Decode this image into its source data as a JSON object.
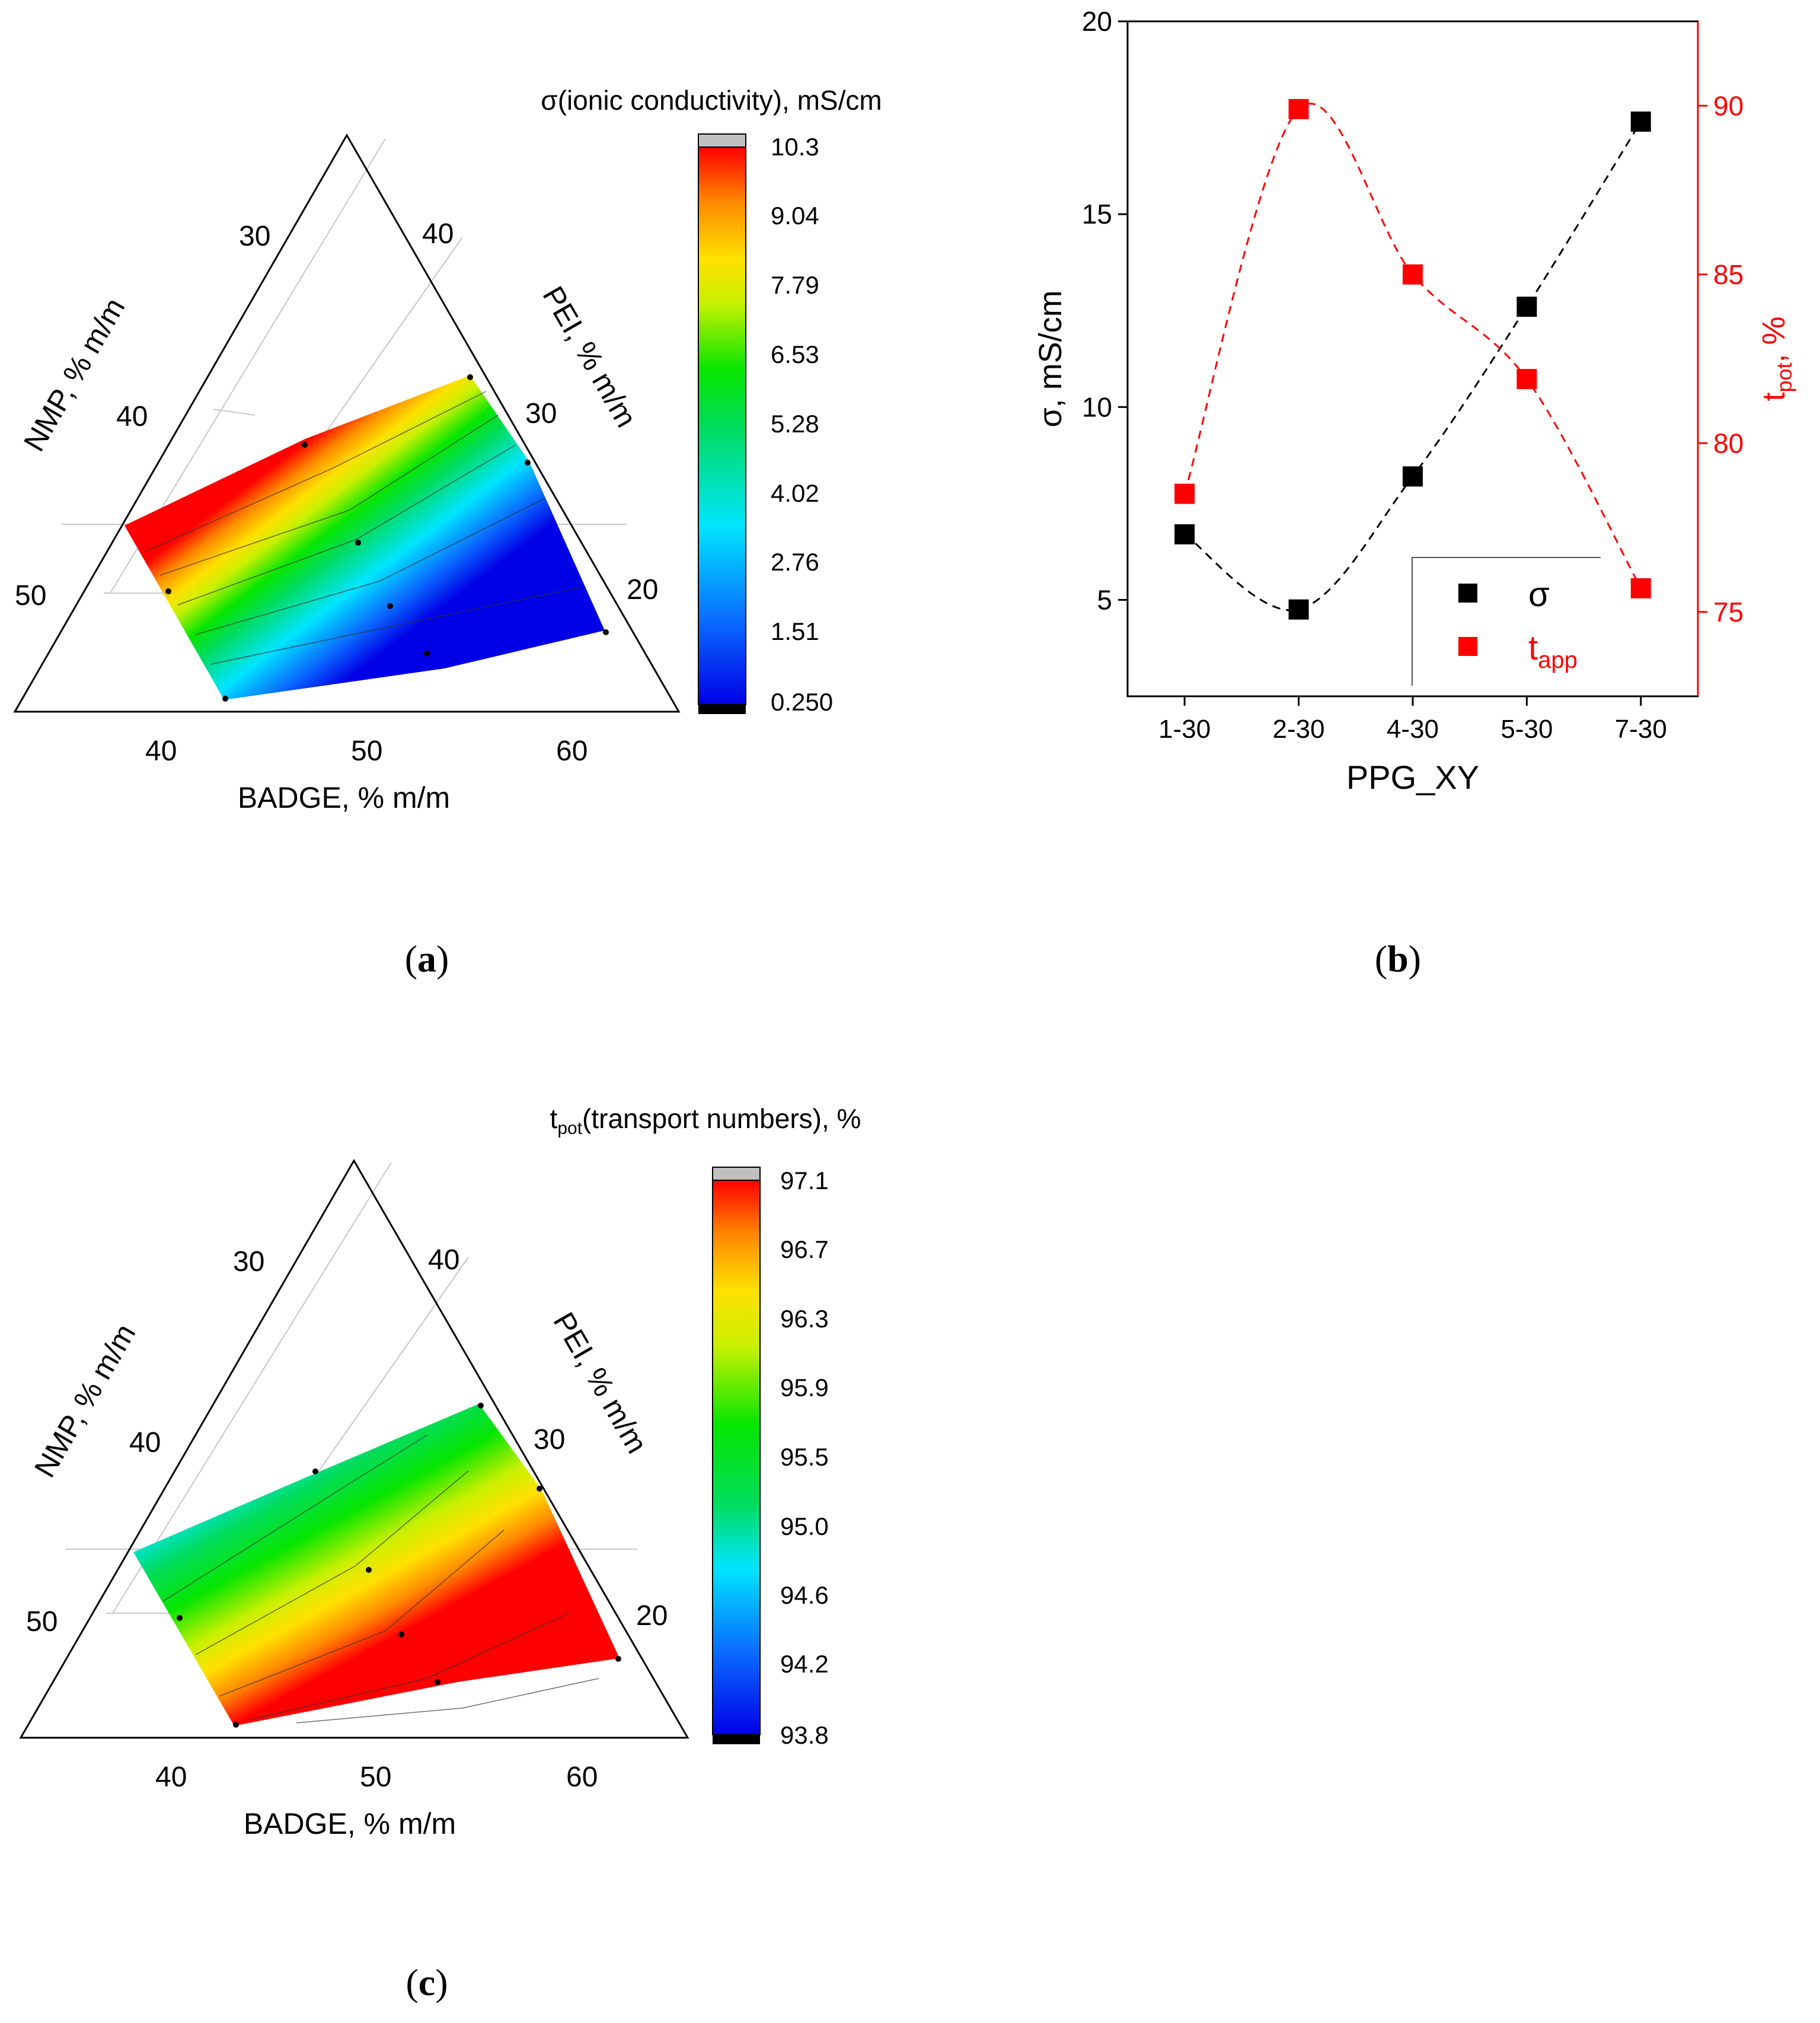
{
  "figures": {
    "panel_labels": {
      "open": "(",
      "a": "a",
      "b": "b",
      "c": "c",
      "close": ")"
    }
  },
  "chart_data": [
    {
      "id": "a",
      "type": "ternary-contour",
      "colorbar_title": "σ(ionic conductivity), mS/cm",
      "colorbar_ticks": [
        "10.3",
        "9.04",
        "7.79",
        "6.53",
        "5.28",
        "4.02",
        "2.76",
        "1.51",
        "0.250"
      ],
      "colorbar_range": [
        0.25,
        10.3
      ],
      "gradient_direction": "high-to-upper-left",
      "axes": {
        "bottom": {
          "label": "BADGE, % m/m",
          "ticks": [
            "40",
            "50",
            "60"
          ]
        },
        "left": {
          "label": "NMP, % m/m",
          "ticks": [
            "30",
            "40",
            "50"
          ]
        },
        "right": {
          "label": "PEI, % m/m",
          "ticks": [
            "40",
            "30",
            "20"
          ]
        }
      },
      "points_badge_pei": [
        [
          40,
          20
        ],
        [
          43,
          17
        ],
        [
          45,
          25
        ],
        [
          48,
          23
        ],
        [
          52,
          19
        ],
        [
          52,
          16
        ],
        [
          56,
          27
        ],
        [
          60,
          17
        ],
        [
          58,
          30
        ]
      ]
    },
    {
      "id": "b",
      "type": "scatter",
      "xlabel": "PPG_XY",
      "categories": [
        "1-30",
        "2-30",
        "4-30",
        "5-30",
        "7-30"
      ],
      "ylabel_left": "σ, mS/cm",
      "ylabel_right_main": "t",
      "ylabel_right_sub": "pot",
      "ylabel_right_tail": ", %",
      "ylim_left": [
        2.5,
        20
      ],
      "ylim_right": [
        72.5,
        92.5
      ],
      "yticks_left": [
        "5",
        "10",
        "15",
        "20"
      ],
      "yticks_right": [
        "75",
        "80",
        "85",
        "90"
      ],
      "series": [
        {
          "name": "σ",
          "axis": "left",
          "color": "#000000",
          "values": [
            6.7,
            4.75,
            8.2,
            12.6,
            17.4
          ]
        },
        {
          "name_main": "t",
          "name_sub": "app",
          "axis": "right",
          "color": "#ff0000",
          "values": [
            78.5,
            89.9,
            85.0,
            81.9,
            75.7
          ]
        }
      ],
      "legend": {
        "labels": [
          "σ",
          "t"
        ],
        "sub": "app",
        "placement": "bottom-right"
      }
    },
    {
      "id": "c",
      "type": "ternary-contour",
      "colorbar_title_main": "t",
      "colorbar_title_sub": "pot",
      "colorbar_title_tail": "(transport numbers), %",
      "colorbar_ticks": [
        "97.1",
        "96.7",
        "96.3",
        "95.9",
        "95.5",
        "95.0",
        "94.6",
        "94.2",
        "93.8"
      ],
      "colorbar_range": [
        93.8,
        97.1
      ],
      "gradient_direction": "high-to-lower-right",
      "axes": {
        "bottom": {
          "label": "BADGE, % m/m",
          "ticks": [
            "40",
            "50",
            "60"
          ]
        },
        "left": {
          "label": "NMP, % m/m",
          "ticks": [
            "30",
            "40",
            "50"
          ]
        },
        "right": {
          "label": "PEI, % m/m",
          "ticks": [
            "40",
            "30",
            "20"
          ]
        }
      },
      "points_badge_pei": [
        [
          40,
          20
        ],
        [
          43,
          17
        ],
        [
          45,
          25
        ],
        [
          48,
          23
        ],
        [
          52,
          19
        ],
        [
          52,
          16
        ],
        [
          56,
          27
        ],
        [
          60,
          17
        ],
        [
          58,
          30
        ]
      ]
    }
  ]
}
